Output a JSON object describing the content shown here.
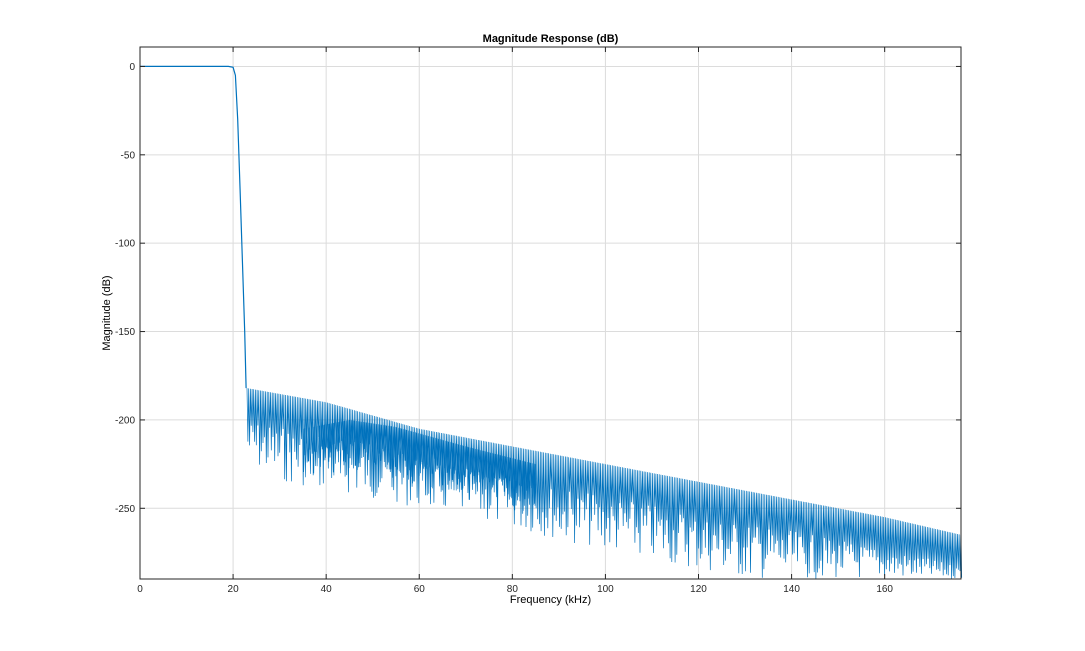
{
  "chart_data": {
    "type": "line",
    "title": "Magnitude Response (dB)",
    "xlabel": "Frequency (kHz)",
    "ylabel": "Magnitude (dB)",
    "xlim": [
      0,
      176.4
    ],
    "ylim": [
      -290,
      11
    ],
    "xticks": [
      0,
      20,
      40,
      60,
      80,
      100,
      120,
      140,
      160
    ],
    "yticks": [
      0,
      -50,
      -100,
      -150,
      -200,
      -250
    ],
    "grid": true,
    "series": [
      {
        "color": "#0072BD",
        "passband": [
          [
            0,
            0
          ],
          [
            19,
            0
          ],
          [
            20,
            -0.5
          ],
          [
            20.5,
            -5
          ],
          [
            21,
            -30
          ],
          [
            21.5,
            -70
          ],
          [
            22,
            -110
          ],
          [
            22.5,
            -150
          ],
          [
            22.8,
            -182
          ]
        ],
        "stopband_envelope": [
          [
            23,
            -182
          ],
          [
            40,
            -190
          ],
          [
            60,
            -205
          ],
          [
            80,
            -215
          ],
          [
            100,
            -225
          ],
          [
            120,
            -235
          ],
          [
            140,
            -245
          ],
          [
            160,
            -255
          ],
          [
            176.4,
            -265
          ]
        ],
        "stopband_secondary_envelope": [
          [
            35,
            -205
          ],
          [
            45,
            -200
          ],
          [
            55,
            -204
          ],
          [
            70,
            -215
          ],
          [
            85,
            -225
          ]
        ],
        "notch_floor": [
          [
            23,
            -225
          ],
          [
            30,
            -235
          ],
          [
            50,
            -245
          ],
          [
            70,
            -255
          ],
          [
            90,
            -268
          ],
          [
            110,
            -280
          ],
          [
            130,
            -290
          ],
          [
            176.4,
            -290
          ]
        ]
      }
    ]
  }
}
